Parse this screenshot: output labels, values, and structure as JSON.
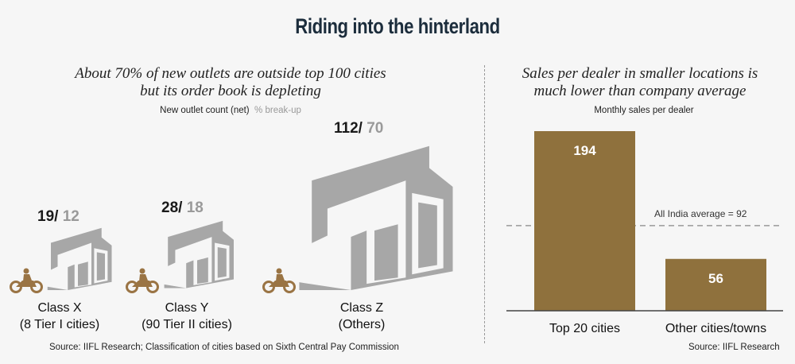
{
  "title": "Riding into the hinterland",
  "left": {
    "subtitle_line1": "About 70% of new outlets are outside top 100 cities",
    "subtitle_line2": "but its order book is depleting",
    "axis_label": "New outlet count (net)",
    "axis_label_grey": "% break-up",
    "source": "Source: IIFL Research; Classification of cities based on Sixth Central Pay Commission"
  },
  "right": {
    "subtitle_line1": "Sales per dealer in smaller locations is",
    "subtitle_line2": "much lower than company average",
    "axis_label": "Monthly sales per dealer",
    "source": "Source: IIFL Research"
  },
  "colors": {
    "bar": "#8f713d",
    "building": "#a7a7a7",
    "icon": "#9a7444",
    "title": "#1c2d3c"
  },
  "chart_data": [
    {
      "type": "pictograph",
      "title": "About 70% of new outlets are outside top 100 cities but its order book is depleting",
      "ylabel": "New outlet count (net) % break-up",
      "categories": [
        {
          "line1": "Class X",
          "line2": "(8 Tier I cities)"
        },
        {
          "line1": "Class Y",
          "line2": "(90 Tier II cities)"
        },
        {
          "line1": "Class Z",
          "line2": "(Others)"
        }
      ],
      "series": [
        {
          "values": [
            19,
            28,
            112
          ]
        },
        {
          "values": [
            12,
            18,
            70
          ]
        }
      ],
      "count_labels": [
        "19/",
        "28/",
        "112/"
      ],
      "pct_labels": [
        "12",
        "18",
        "70"
      ]
    },
    {
      "type": "bar",
      "title": "Sales per dealer in smaller locations is much lower than company average",
      "ylabel": "Monthly sales per dealer",
      "categories": [
        "Top 20 cities",
        "Other cities/towns"
      ],
      "values": [
        194,
        56
      ],
      "value_labels": [
        "194",
        "56"
      ],
      "reference_line": {
        "label": "All India average = 92",
        "value": 92
      },
      "ylim": [
        0,
        200
      ]
    }
  ]
}
